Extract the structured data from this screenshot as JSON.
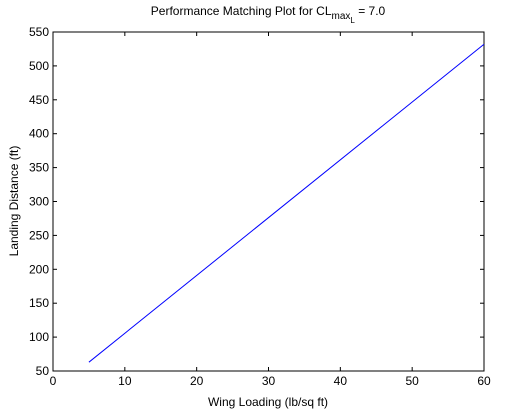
{
  "chart_data": {
    "type": "line",
    "title": "Performance Matching Plot for CL",
    "title_subscript": "max",
    "title_subsubscript": "L",
    "title_suffix": " = 7.0",
    "xlabel": "Wing Loading (lb/sq ft)",
    "ylabel": "Landing Distance (ft)",
    "x": [
      5,
      60
    ],
    "series": [
      {
        "color": "#0000ff",
        "values": [
          63,
          532
        ]
      }
    ],
    "xlim": [
      0,
      60
    ],
    "xticks": [
      0,
      10,
      20,
      30,
      40,
      50,
      60
    ],
    "ylim": [
      50,
      550
    ],
    "yticks": [
      50,
      100,
      150,
      200,
      250,
      300,
      350,
      400,
      450,
      500,
      550
    ]
  }
}
